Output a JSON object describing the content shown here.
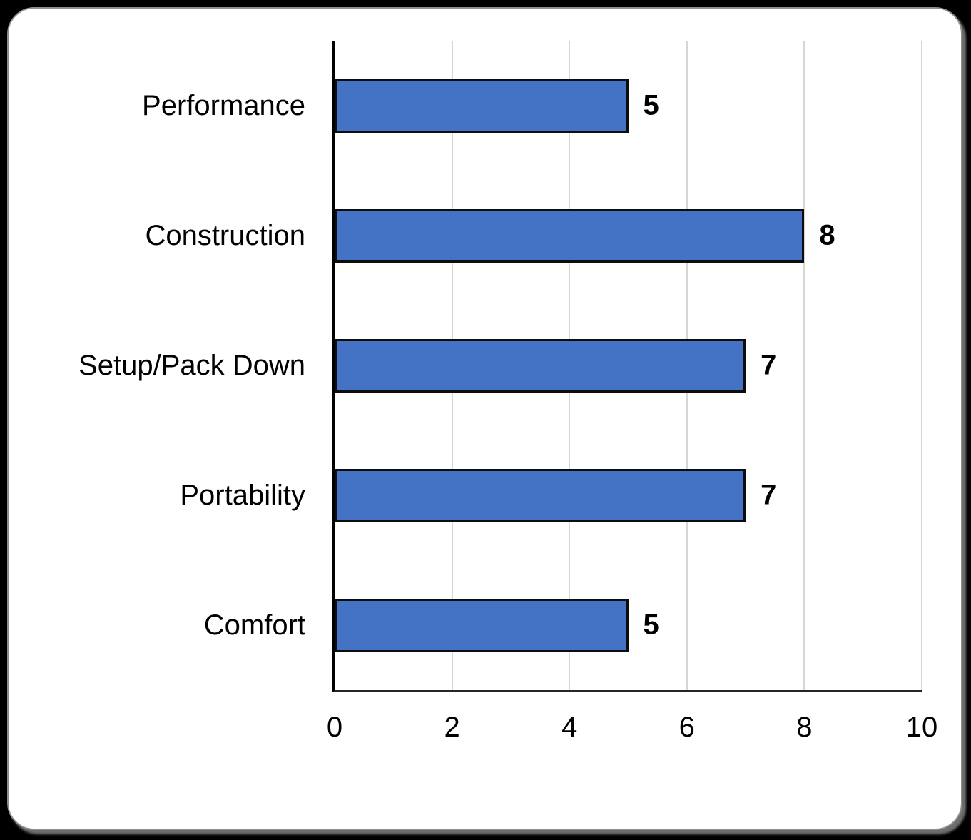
{
  "page": {
    "outer_background": "#000000",
    "card_background": "#ffffff",
    "card_border_color": "#8f8f8f"
  },
  "chart_data": {
    "type": "bar",
    "orientation": "horizontal",
    "title": "",
    "xlabel": "",
    "ylabel": "",
    "categories": [
      "Performance",
      "Construction",
      "Setup/Pack Down",
      "Portability",
      "Comfort"
    ],
    "values": [
      5,
      8,
      7,
      7,
      5
    ],
    "data_labels": [
      "5",
      "8",
      "7",
      "7",
      "5"
    ],
    "xlim": [
      0,
      10
    ],
    "x_ticks": [
      0,
      2,
      4,
      6,
      8,
      10
    ],
    "grid": "vertical gridlines at every tick",
    "legend": "none",
    "bar_color": "#4472C4",
    "bar_border_color": "#0d0d0d",
    "gridline_color": "#d6d6d6",
    "axis_color": "#262626"
  }
}
